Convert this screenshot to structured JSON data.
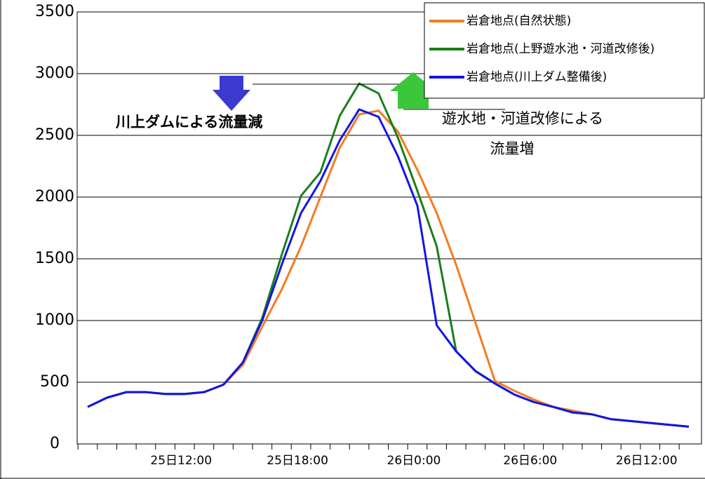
{
  "chart_data": {
    "type": "line",
    "categories": [
      null,
      null,
      null,
      null,
      null,
      "25日12:00",
      null,
      null,
      null,
      null,
      null,
      "25日18:00",
      null,
      null,
      null,
      null,
      null,
      "26日0:00",
      null,
      null,
      null,
      null,
      null,
      "26日6:00",
      null,
      null,
      null,
      null,
      null,
      "26日12:00",
      null,
      null
    ],
    "series": [
      {
        "name": "岩倉地点(自然状態)",
        "color": "#f47c20",
        "values": [
          300,
          375,
          420,
          420,
          405,
          405,
          420,
          480,
          640,
          950,
          1250,
          1600,
          2000,
          2400,
          2670,
          2700,
          2530,
          2220,
          1870,
          1450,
          980,
          510,
          430,
          360,
          300,
          270,
          240,
          200,
          185,
          170,
          155,
          140
        ]
      },
      {
        "name": "岩倉地点(上野遊水池・河道改修後)",
        "color": "#1a7f1a",
        "values": [
          300,
          375,
          420,
          420,
          405,
          405,
          420,
          480,
          660,
          1020,
          1530,
          2010,
          2200,
          2660,
          2920,
          2840,
          2480,
          2050,
          1600,
          750,
          590,
          490,
          400,
          340,
          300,
          255,
          240,
          200,
          185,
          170,
          155,
          140
        ]
      },
      {
        "name": "岩倉地点(川上ダム整備後)",
        "color": "#1414e6",
        "values": [
          300,
          375,
          420,
          420,
          405,
          405,
          420,
          480,
          660,
          1000,
          1450,
          1870,
          2130,
          2460,
          2710,
          2650,
          2330,
          1930,
          960,
          750,
          590,
          490,
          400,
          340,
          300,
          255,
          240,
          200,
          185,
          170,
          155,
          140
        ]
      }
    ],
    "ylim": [
      0,
      3500
    ],
    "yticks": [
      0,
      500,
      1000,
      1500,
      2000,
      2500,
      3000,
      3500
    ],
    "grid": true,
    "annotations": [
      "川上ダムによる流量減",
      "遊水地・河道改修による",
      "流量増"
    ]
  }
}
